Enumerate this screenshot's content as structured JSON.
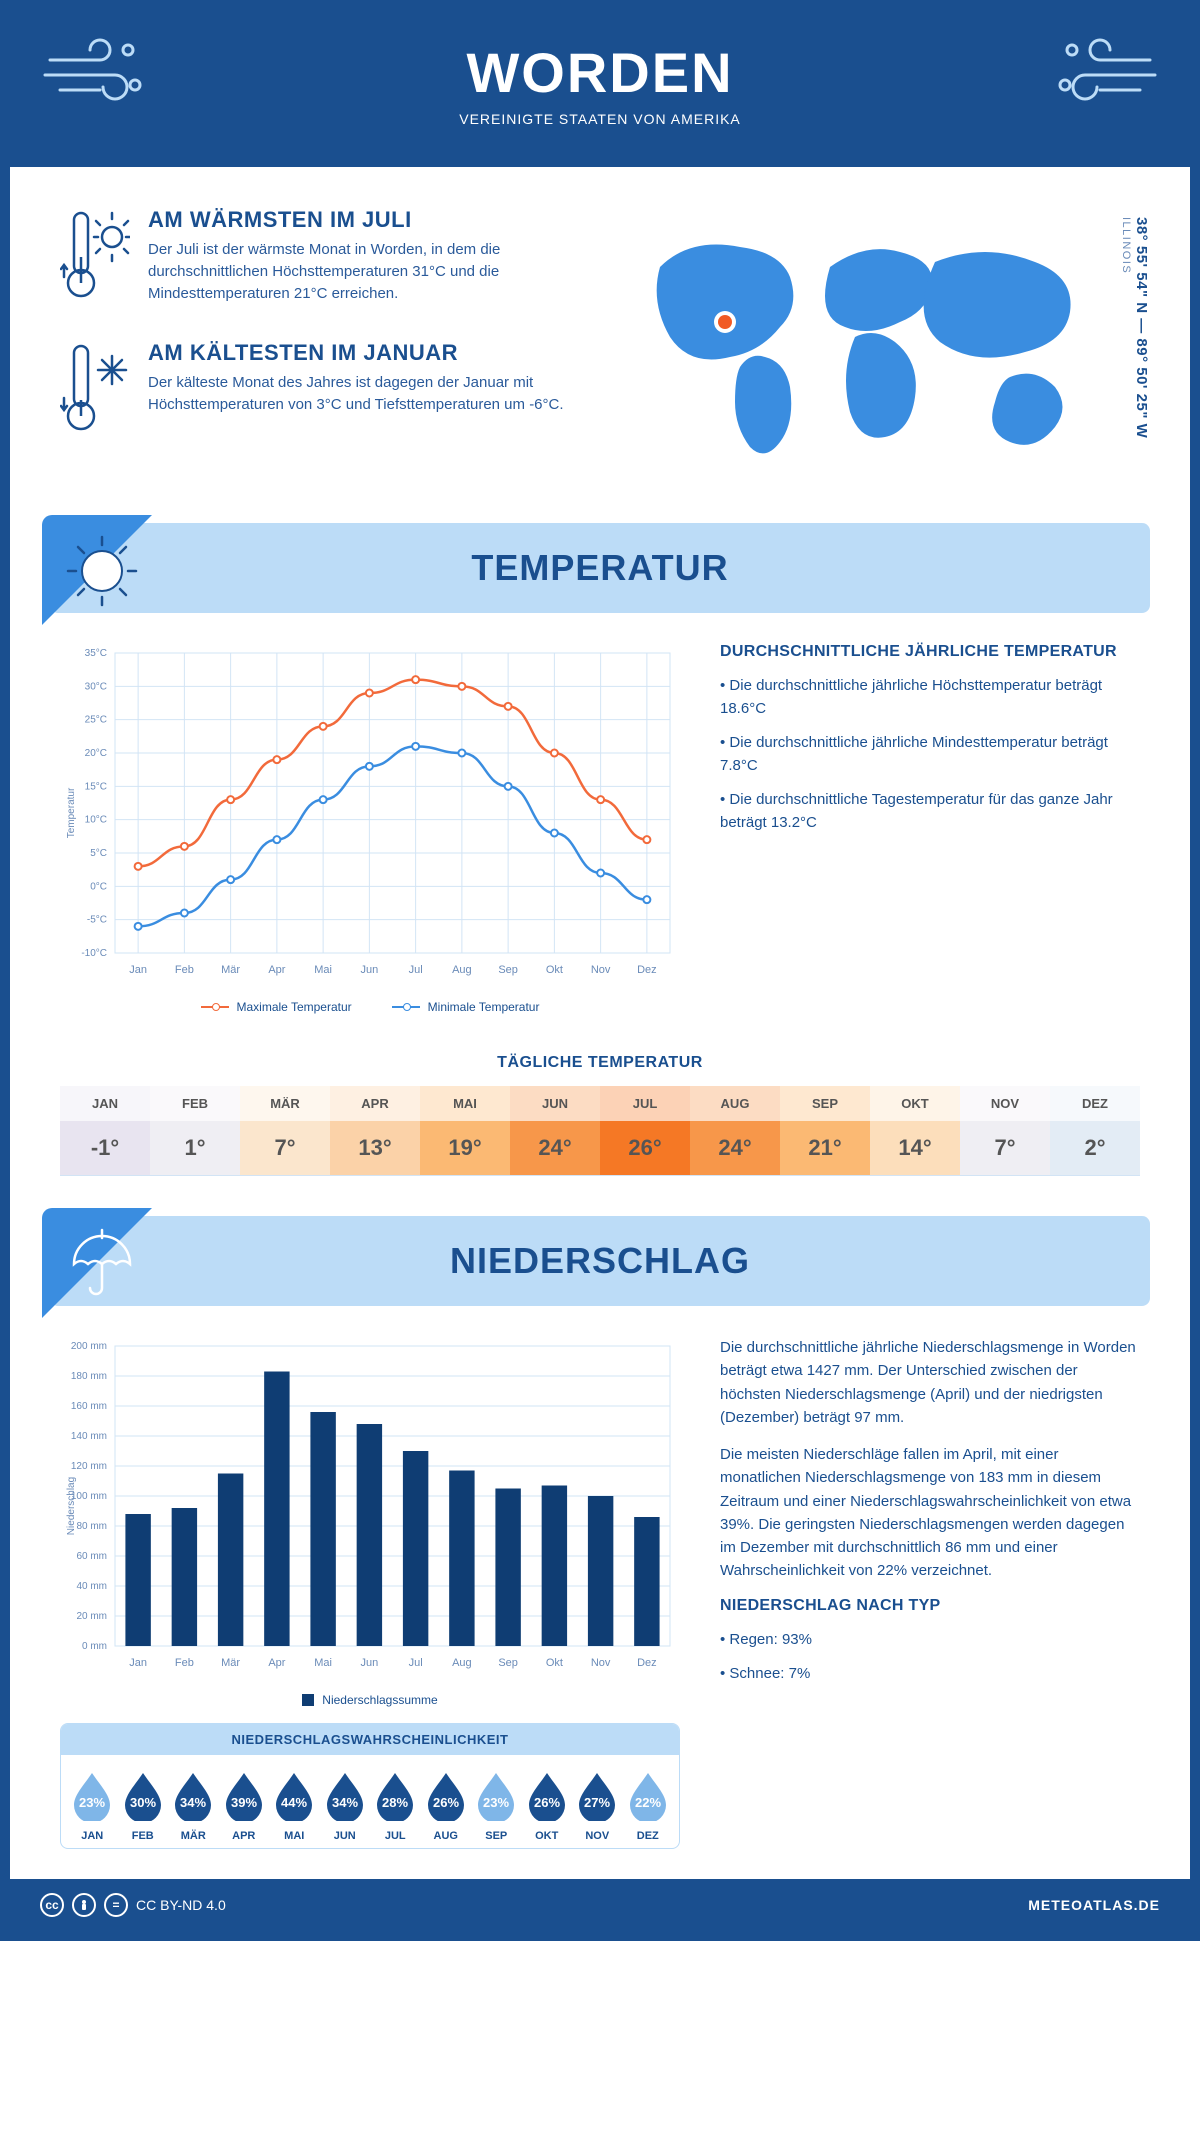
{
  "colors": {
    "primary": "#1a4f8f",
    "accentLight": "#bcdcf7",
    "accentMid": "#3a8de0",
    "lineMax": "#f26a3b",
    "lineMin": "#3a8de0",
    "bar": "#0f3d73",
    "marker": "#f15a24"
  },
  "header": {
    "title": "WORDEN",
    "subtitle": "VEREINIGTE STAATEN VON AMERIKA"
  },
  "location": {
    "state": "ILLINOIS",
    "coords": "38° 55' 54\" N — 89° 50' 25\" W"
  },
  "facts": {
    "warm": {
      "title": "AM WÄRMSTEN IM JULI",
      "text": "Der Juli ist der wärmste Monat in Worden, in dem die durchschnittlichen Höchsttemperaturen 31°C und die Mindesttemperaturen 21°C erreichen."
    },
    "cold": {
      "title": "AM KÄLTESTEN IM JANUAR",
      "text": "Der kälteste Monat des Jahres ist dagegen der Januar mit Höchsttemperaturen von 3°C und Tiefsttemperaturen um -6°C."
    }
  },
  "sections": {
    "temp": "TEMPERATUR",
    "precip": "NIEDERSCHLAG"
  },
  "tempChart": {
    "type": "line",
    "months": [
      "Jan",
      "Feb",
      "Mär",
      "Apr",
      "Mai",
      "Jun",
      "Jul",
      "Aug",
      "Sep",
      "Okt",
      "Nov",
      "Dez"
    ],
    "max": [
      3,
      6,
      13,
      19,
      24,
      29,
      31,
      30,
      27,
      20,
      13,
      7
    ],
    "min": [
      -6,
      -4,
      1,
      7,
      13,
      18,
      21,
      20,
      15,
      8,
      2,
      -2
    ],
    "ylabel": "Temperatur",
    "ylim": [
      -10,
      35
    ],
    "ytick_step": 5,
    "grid_color": "#d2e4f5",
    "legend": {
      "max": "Maximale Temperatur",
      "min": "Minimale Temperatur"
    }
  },
  "tempText": {
    "heading": "DURCHSCHNITTLICHE JÄHRLICHE TEMPERATUR",
    "b1": "• Die durchschnittliche jährliche Höchsttemperatur beträgt 18.6°C",
    "b2": "• Die durchschnittliche jährliche Mindesttemperatur beträgt 7.8°C",
    "b3": "• Die durchschnittliche Tagestemperatur für das ganze Jahr beträgt 13.2°C"
  },
  "daily": {
    "title": "TÄGLICHE TEMPERATUR",
    "months": [
      "JAN",
      "FEB",
      "MÄR",
      "APR",
      "MAI",
      "JUN",
      "JUL",
      "AUG",
      "SEP",
      "OKT",
      "NOV",
      "DEZ"
    ],
    "values": [
      "-1°",
      "1°",
      "7°",
      "13°",
      "19°",
      "24°",
      "26°",
      "24°",
      "21°",
      "14°",
      "7°",
      "2°"
    ],
    "bg": [
      "#e8e4f0",
      "#efeef3",
      "#fbe6cd",
      "#fbd2a8",
      "#fbb973",
      "#f7974a",
      "#f57825",
      "#f7974a",
      "#fbb973",
      "#fcdebb",
      "#efeef3",
      "#e3ecf5"
    ]
  },
  "precipChart": {
    "type": "bar",
    "months": [
      "Jan",
      "Feb",
      "Mär",
      "Apr",
      "Mai",
      "Jun",
      "Jul",
      "Aug",
      "Sep",
      "Okt",
      "Nov",
      "Dez"
    ],
    "values": [
      88,
      92,
      115,
      183,
      156,
      148,
      130,
      117,
      105,
      107,
      100,
      86
    ],
    "ylabel": "Niederschlag",
    "ylim": [
      0,
      200
    ],
    "ytick_step": 20,
    "grid_color": "#d2e4f5",
    "legend": "Niederschlagssumme",
    "bar_color": "#0f3d73"
  },
  "precipText": {
    "p1": "Die durchschnittliche jährliche Niederschlagsmenge in Worden beträgt etwa 1427 mm. Der Unterschied zwischen der höchsten Niederschlagsmenge (April) und der niedrigsten (Dezember) beträgt 97 mm.",
    "p2": "Die meisten Niederschläge fallen im April, mit einer monatlichen Niederschlagsmenge von 183 mm in diesem Zeitraum und einer Niederschlagswahrscheinlichkeit von etwa 39%. Die geringsten Niederschlagsmengen werden dagegen im Dezember mit durchschnittlich 86 mm und einer Wahrscheinlichkeit von 22% verzeichnet.",
    "h2": "NIEDERSCHLAG NACH TYP",
    "b1": "• Regen: 93%",
    "b2": "• Schnee: 7%"
  },
  "prob": {
    "title": "NIEDERSCHLAGSWAHRSCHEINLICHKEIT",
    "months": [
      "JAN",
      "FEB",
      "MÄR",
      "APR",
      "MAI",
      "JUN",
      "JUL",
      "AUG",
      "SEP",
      "OKT",
      "NOV",
      "DEZ"
    ],
    "values": [
      "23%",
      "30%",
      "34%",
      "39%",
      "44%",
      "34%",
      "28%",
      "26%",
      "23%",
      "26%",
      "27%",
      "22%"
    ],
    "light": [
      true,
      false,
      false,
      false,
      false,
      false,
      false,
      false,
      true,
      false,
      false,
      true
    ]
  },
  "footer": {
    "license": "CC BY-ND 4.0",
    "site": "METEOATLAS.DE"
  }
}
